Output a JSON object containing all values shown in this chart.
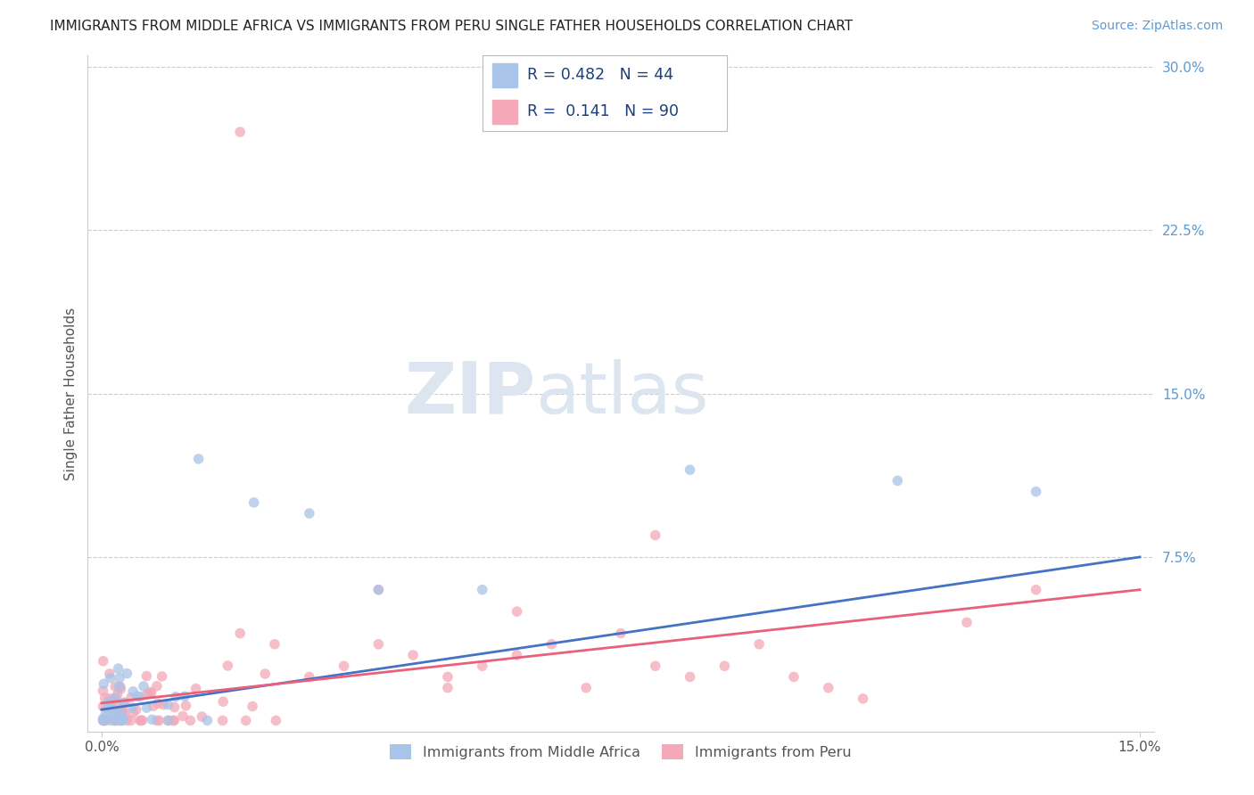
{
  "title": "IMMIGRANTS FROM MIDDLE AFRICA VS IMMIGRANTS FROM PERU SINGLE FATHER HOUSEHOLDS CORRELATION CHART",
  "source": "Source: ZipAtlas.com",
  "ylabel": "Single Father Households",
  "xlabel": "",
  "xlim": [
    -0.002,
    0.152
  ],
  "ylim": [
    -0.005,
    0.305
  ],
  "yticks": [
    0.075,
    0.15,
    0.225,
    0.3
  ],
  "ytick_labels": [
    "7.5%",
    "15.0%",
    "22.5%",
    "30.0%"
  ],
  "xticks": [
    0.0,
    0.15
  ],
  "xtick_labels": [
    "0.0%",
    "15.0%"
  ],
  "blue_R": 0.482,
  "blue_N": 44,
  "pink_R": 0.141,
  "pink_N": 90,
  "blue_color": "#a8c4e8",
  "pink_color": "#f4a8b8",
  "blue_line_color": "#4472c4",
  "pink_line_color": "#e8607a",
  "watermark_color": "#dde6f0",
  "legend_blue_label": "Immigrants from Middle Africa",
  "legend_pink_label": "Immigrants from Peru",
  "background_color": "#ffffff",
  "grid_color": "#cccccc",
  "title_color": "#222222",
  "source_color": "#5b9bd5",
  "ytick_color": "#5b9bd5",
  "blue_trend_start_y": 0.005,
  "blue_trend_end_y": 0.075,
  "pink_trend_start_y": 0.008,
  "pink_trend_end_y": 0.06
}
